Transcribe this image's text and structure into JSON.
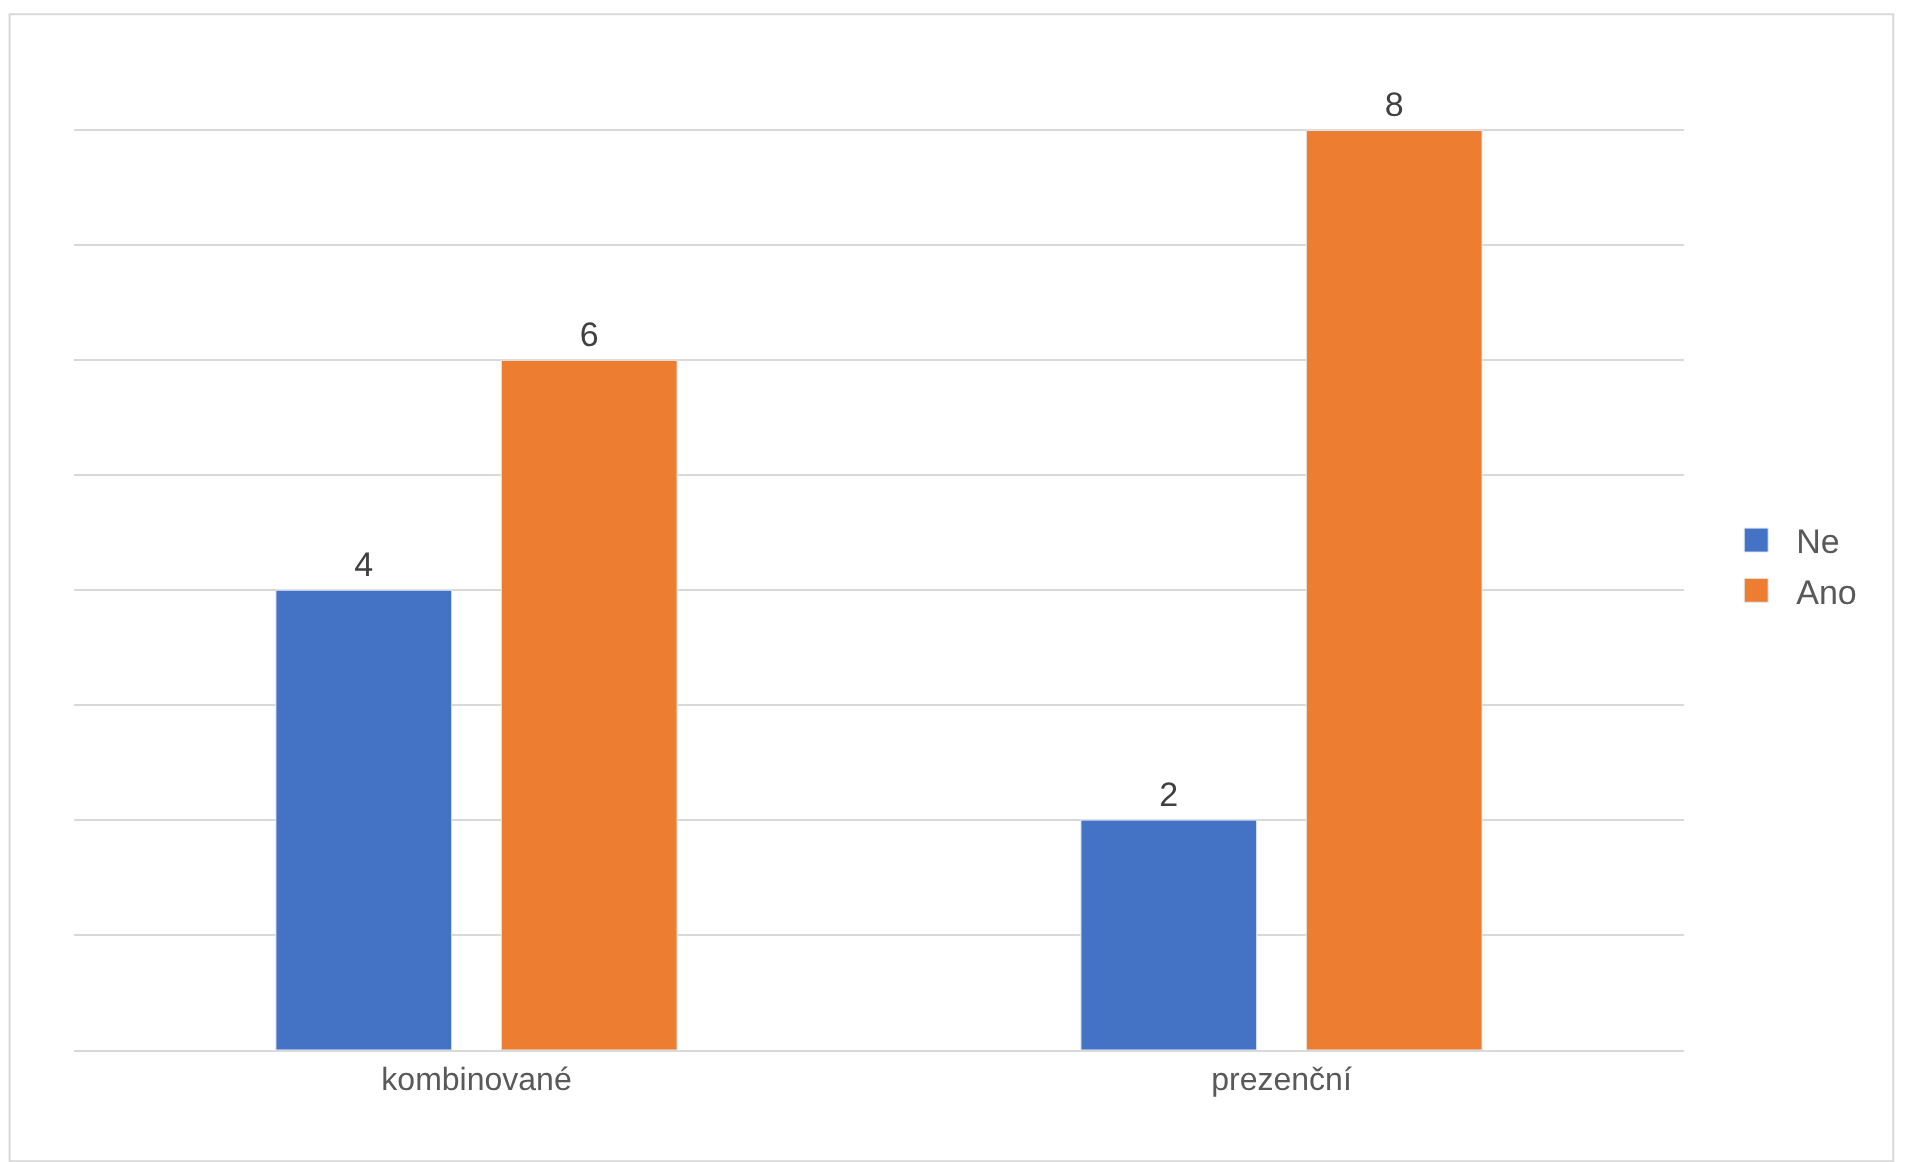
{
  "chart_data": {
    "type": "bar",
    "categories": [
      "kombinované",
      "prezenční"
    ],
    "series": [
      {
        "name": "Ne",
        "color": "#4472c4",
        "values": [
          4,
          2
        ]
      },
      {
        "name": "Ano",
        "color": "#ed7d31",
        "values": [
          6,
          8
        ]
      }
    ],
    "tick_labels": "x",
    "grid": "y",
    "legend": "right",
    "data_labels": true
  }
}
